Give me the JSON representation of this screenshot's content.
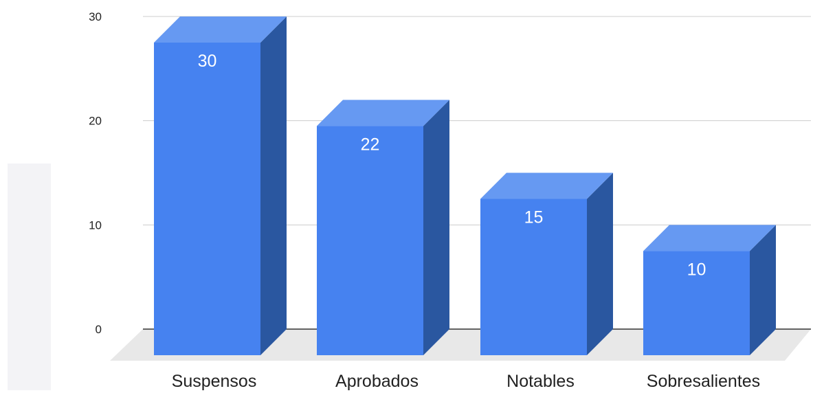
{
  "chart_data": {
    "type": "bar",
    "style": "3d",
    "categories": [
      "Suspensos",
      "Aprobados",
      "Notables",
      "Sobresalientes"
    ],
    "values": [
      30,
      22,
      15,
      10
    ],
    "data_labels": [
      "30",
      "22",
      "15",
      "10"
    ],
    "title": "",
    "xlabel": "",
    "ylabel": "",
    "ylim": [
      0,
      30
    ],
    "y_ticks": [
      0,
      10,
      20,
      30
    ],
    "y_tick_labels": [
      "0",
      "10",
      "20",
      "30"
    ],
    "grid": true,
    "legend": "none",
    "colors": {
      "bar_front": "#4682f0",
      "bar_top": "#6699f2",
      "bar_side": "#2a57a0",
      "floor": "#e8e8e8",
      "grid": "#cccccc",
      "axis": "#333333",
      "label": "#ffffff",
      "text": "#222222"
    }
  }
}
